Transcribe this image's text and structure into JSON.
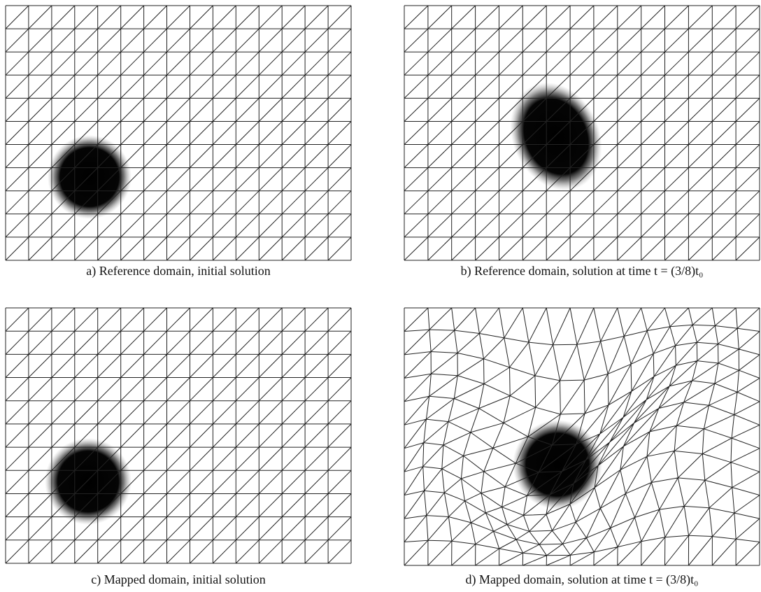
{
  "figure": {
    "panels": [
      {
        "caption": "a) Reference domain, initial solution"
      },
      {
        "caption": "b) Reference domain, solution at time t = (3/8)t₀"
      },
      {
        "caption": "c) Mapped domain, initial solution"
      },
      {
        "caption": "d) Mapped domain, solution at time t = (3/8)t₀"
      }
    ]
  }
}
